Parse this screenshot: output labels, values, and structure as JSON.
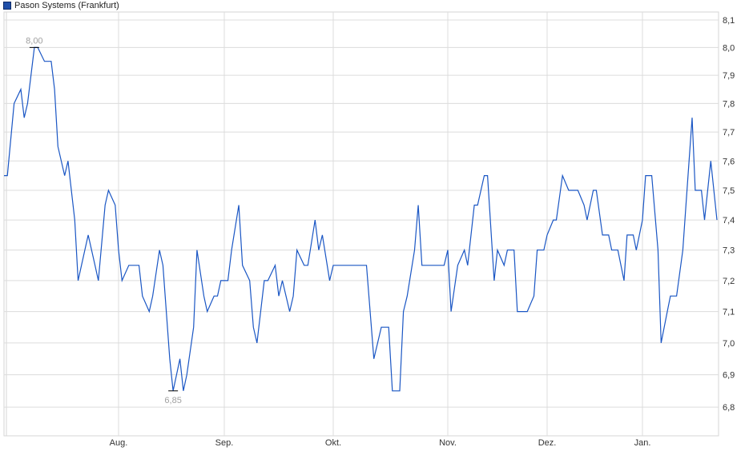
{
  "legend": {
    "label": "Pason Systems (Frankfurt)",
    "color": "#1f4fa8"
  },
  "chart_data": {
    "type": "line",
    "title": "",
    "xlabel": "",
    "ylabel": "",
    "y_scale": "log",
    "ylim": [
      6.71,
      8.13
    ],
    "grid": true,
    "legend_position": "top-left",
    "line_color": "#1a56c4",
    "y_ticks": [
      "8,1",
      "8,0",
      "7,9",
      "7,8",
      "7,7",
      "7,6",
      "7,5",
      "7,4",
      "7,3",
      "7,2",
      "7,1",
      "7,0",
      "6,9",
      "6,8"
    ],
    "y_tick_values": [
      8.1,
      8.0,
      7.9,
      7.8,
      7.7,
      7.6,
      7.5,
      7.4,
      7.3,
      7.2,
      7.1,
      7.0,
      6.9,
      6.8
    ],
    "x_ticks": [
      "Aug.",
      "Sep.",
      "Okt.",
      "Nov.",
      "Dez.",
      "Jan."
    ],
    "annotations": [
      {
        "label": "8,00",
        "date": "07.07.",
        "value": 8.0,
        "type": "max"
      },
      {
        "label": "6,85",
        "date": "17.08.",
        "value": 6.85,
        "type": "min"
      }
    ],
    "series": [
      {
        "points": [
          [
            "28.06.",
            7.55
          ],
          [
            "29.06.",
            7.55
          ],
          [
            "01.07.",
            7.8
          ],
          [
            "03.07.",
            7.85
          ],
          [
            "04.07.",
            7.75
          ],
          [
            "05.07.",
            7.8
          ],
          [
            "07.07.",
            8.0
          ],
          [
            "08.07.",
            8.0
          ],
          [
            "10.07.",
            7.95
          ],
          [
            "12.07.",
            7.95
          ],
          [
            "13.07.",
            7.85
          ],
          [
            "14.07.",
            7.65
          ],
          [
            "16.07.",
            7.55
          ],
          [
            "17.07.",
            7.6
          ],
          [
            "19.07.",
            7.4
          ],
          [
            "20.07.",
            7.2
          ],
          [
            "22.07.",
            7.3
          ],
          [
            "23.07.",
            7.35
          ],
          [
            "25.07.",
            7.25
          ],
          [
            "26.07.",
            7.2
          ],
          [
            "28.07.",
            7.45
          ],
          [
            "29.07.",
            7.5
          ],
          [
            "31.07.",
            7.45
          ],
          [
            "01.08.",
            7.3
          ],
          [
            "02.08.",
            7.2
          ],
          [
            "04.08.",
            7.25
          ],
          [
            "07.08.",
            7.25
          ],
          [
            "08.08.",
            7.15
          ],
          [
            "10.08.",
            7.1
          ],
          [
            "11.08.",
            7.15
          ],
          [
            "13.08.",
            7.3
          ],
          [
            "14.08.",
            7.25
          ],
          [
            "16.08.",
            6.95
          ],
          [
            "17.08.",
            6.85
          ],
          [
            "19.08.",
            6.95
          ],
          [
            "20.08.",
            6.85
          ],
          [
            "21.08.",
            6.9
          ],
          [
            "23.08.",
            7.05
          ],
          [
            "24.08.",
            7.3
          ],
          [
            "26.08.",
            7.15
          ],
          [
            "27.08.",
            7.1
          ],
          [
            "29.08.",
            7.15
          ],
          [
            "30.08.",
            7.15
          ],
          [
            "31.08.",
            7.2
          ],
          [
            "02.09.",
            7.2
          ],
          [
            "03.09.",
            7.3
          ],
          [
            "05.09.",
            7.45
          ],
          [
            "06.09.",
            7.25
          ],
          [
            "08.09.",
            7.2
          ],
          [
            "09.09.",
            7.05
          ],
          [
            "10.09.",
            7.0
          ],
          [
            "12.09.",
            7.2
          ],
          [
            "13.09.",
            7.2
          ],
          [
            "15.09.",
            7.25
          ],
          [
            "16.09.",
            7.15
          ],
          [
            "17.09.",
            7.2
          ],
          [
            "19.09.",
            7.1
          ],
          [
            "20.09.",
            7.15
          ],
          [
            "21.09.",
            7.3
          ],
          [
            "23.09.",
            7.25
          ],
          [
            "24.09.",
            7.25
          ],
          [
            "26.09.",
            7.4
          ],
          [
            "27.09.",
            7.3
          ],
          [
            "28.09.",
            7.35
          ],
          [
            "30.09.",
            7.2
          ],
          [
            "01.10.",
            7.25
          ],
          [
            "10.10.",
            7.25
          ],
          [
            "12.10.",
            6.95
          ],
          [
            "13.10.",
            7.0
          ],
          [
            "14.10.",
            7.05
          ],
          [
            "16.10.",
            7.05
          ],
          [
            "17.10.",
            6.85
          ],
          [
            "19.10.",
            6.85
          ],
          [
            "20.10.",
            7.1
          ],
          [
            "21.10.",
            7.15
          ],
          [
            "23.10.",
            7.3
          ],
          [
            "24.10.",
            7.45
          ],
          [
            "25.10.",
            7.25
          ],
          [
            "31.10.",
            7.25
          ],
          [
            "01.11.",
            7.3
          ],
          [
            "02.11.",
            7.1
          ],
          [
            "04.11.",
            7.25
          ],
          [
            "06.11.",
            7.3
          ],
          [
            "07.11.",
            7.25
          ],
          [
            "09.11.",
            7.45
          ],
          [
            "10.11.",
            7.45
          ],
          [
            "12.11.",
            7.55
          ],
          [
            "13.11.",
            7.55
          ],
          [
            "15.11.",
            7.2
          ],
          [
            "16.11.",
            7.3
          ],
          [
            "18.11.",
            7.25
          ],
          [
            "19.11.",
            7.3
          ],
          [
            "21.11.",
            7.3
          ],
          [
            "22.11.",
            7.1
          ],
          [
            "25.11.",
            7.1
          ],
          [
            "27.11.",
            7.15
          ],
          [
            "28.11.",
            7.3
          ],
          [
            "30.11.",
            7.3
          ],
          [
            "01.12.",
            7.35
          ],
          [
            "03.12.",
            7.4
          ],
          [
            "04.12.",
            7.4
          ],
          [
            "06.12.",
            7.55
          ],
          [
            "08.12.",
            7.5
          ],
          [
            "11.12.",
            7.5
          ],
          [
            "13.12.",
            7.45
          ],
          [
            "14.12.",
            7.4
          ],
          [
            "16.12.",
            7.5
          ],
          [
            "17.12.",
            7.5
          ],
          [
            "19.12.",
            7.35
          ],
          [
            "21.12.",
            7.35
          ],
          [
            "22.12.",
            7.3
          ],
          [
            "24.12.",
            7.3
          ],
          [
            "26.12.",
            7.2
          ],
          [
            "27.12.",
            7.35
          ],
          [
            "29.12.",
            7.35
          ],
          [
            "30.12.",
            7.3
          ],
          [
            "01.01.",
            7.4
          ],
          [
            "02.01.",
            7.55
          ],
          [
            "04.01.",
            7.55
          ],
          [
            "06.01.",
            7.3
          ],
          [
            "07.01.",
            7.0
          ],
          [
            "09.01.",
            7.1
          ],
          [
            "10.01.",
            7.15
          ],
          [
            "12.01.",
            7.15
          ],
          [
            "14.01.",
            7.3
          ],
          [
            "15.01.",
            7.45
          ],
          [
            "17.01.",
            7.75
          ],
          [
            "18.01.",
            7.5
          ],
          [
            "20.01.",
            7.5
          ],
          [
            "21.01.",
            7.4
          ],
          [
            "23.01.",
            7.6
          ],
          [
            "25.01.",
            7.4
          ]
        ]
      }
    ]
  }
}
